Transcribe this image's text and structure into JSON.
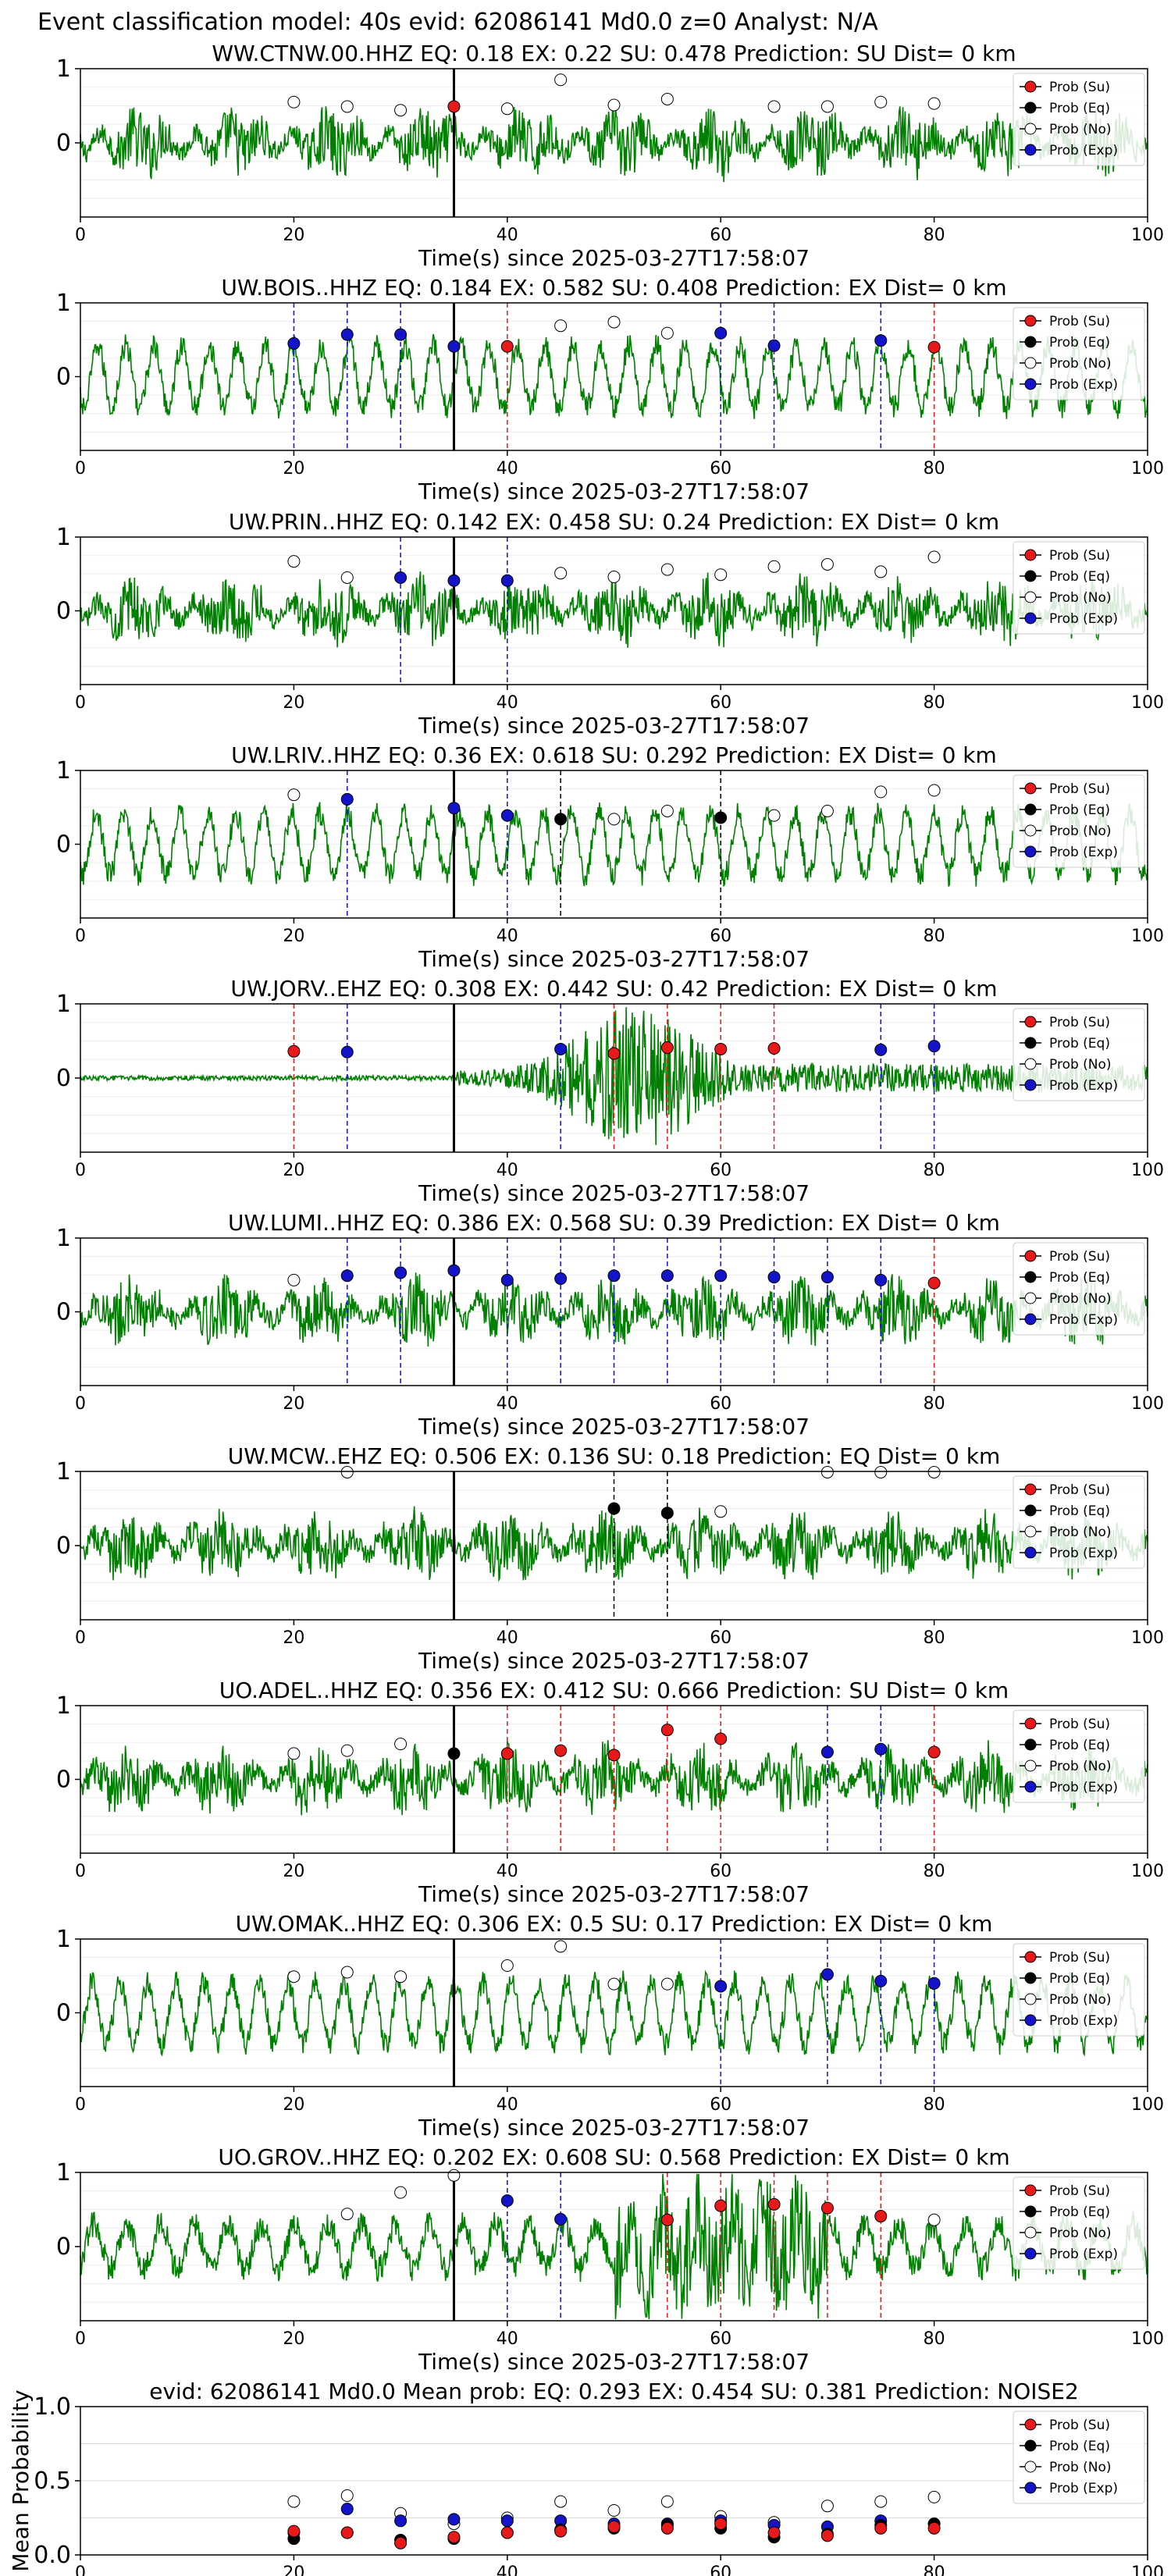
{
  "page": {
    "suptitle": "Event classification model: 40s evid: 62086141 Md0.0 z=0 Analyst: N/A"
  },
  "legend": [
    {
      "label": "Prob (Su)",
      "fill": "#e8191b"
    },
    {
      "label": "Prob (Eq)",
      "fill": "#000000"
    },
    {
      "label": "Prob (No)",
      "fill": "#ffffff"
    },
    {
      "label": "Prob (Exp)",
      "fill": "#1313c8"
    }
  ],
  "colors": {
    "trace": "#008000",
    "su": "#e8191b",
    "eq": "#000000",
    "no": "#ffffff",
    "exp": "#1313c8",
    "origin_line": "#000000"
  },
  "chart_data": [
    {
      "type": "line",
      "title": "WW.CTNW.00.HHZ   EQ: 0.18  EX: 0.22  SU: 0.478   Prediction: SU    Dist= 0 km",
      "xlabel": "Time(s) since 2025-03-27T17:58:07",
      "ylabel": "",
      "xlim": [
        0,
        100
      ],
      "ylim": [
        -1,
        1
      ],
      "yticks": [
        "0",
        "1"
      ],
      "xticks": [
        "0",
        "20",
        "40",
        "60",
        "80",
        "100"
      ],
      "origin_time": 35,
      "waveform": "noisy",
      "points": [
        [
          20,
          0.55,
          "no"
        ],
        [
          25,
          0.49,
          "no"
        ],
        [
          30,
          0.44,
          "no"
        ],
        [
          35,
          0.49,
          "su"
        ],
        [
          40,
          0.46,
          "no"
        ],
        [
          45,
          0.85,
          "no"
        ],
        [
          50,
          0.51,
          "no"
        ],
        [
          55,
          0.59,
          "no"
        ],
        [
          65,
          0.49,
          "no"
        ],
        [
          70,
          0.49,
          "no"
        ],
        [
          75,
          0.55,
          "no"
        ],
        [
          80,
          0.53,
          "no"
        ]
      ],
      "vlines": []
    },
    {
      "type": "line",
      "title": "UW.BOIS..HHZ   EQ: 0.184  EX: 0.582  SU: 0.408   Prediction: EX    Dist= 0 km",
      "xlabel": "Time(s) since 2025-03-27T17:58:07",
      "ylabel": "",
      "xlim": [
        0,
        100
      ],
      "ylim": [
        -1,
        1
      ],
      "yticks": [
        "0",
        "1"
      ],
      "xticks": [
        "0",
        "20",
        "40",
        "60",
        "80",
        "100"
      ],
      "origin_time": 35,
      "waveform": "oscillating",
      "points": [
        [
          20,
          0.45,
          "exp"
        ],
        [
          25,
          0.57,
          "exp"
        ],
        [
          30,
          0.57,
          "exp"
        ],
        [
          35,
          0.41,
          "exp"
        ],
        [
          40,
          0.41,
          "su"
        ],
        [
          45,
          0.69,
          "no"
        ],
        [
          50,
          0.74,
          "no"
        ],
        [
          55,
          0.59,
          "no"
        ],
        [
          60,
          0.59,
          "exp"
        ],
        [
          65,
          0.42,
          "exp"
        ],
        [
          75,
          0.49,
          "exp"
        ],
        [
          80,
          0.4,
          "su"
        ]
      ],
      "vlines": [
        [
          20,
          "exp"
        ],
        [
          25,
          "exp"
        ],
        [
          30,
          "exp"
        ],
        [
          40,
          "su"
        ],
        [
          60,
          "exp"
        ],
        [
          65,
          "exp"
        ],
        [
          75,
          "exp"
        ],
        [
          80,
          "su"
        ]
      ]
    },
    {
      "type": "line",
      "title": "UW.PRIN..HHZ   EQ: 0.142  EX: 0.458  SU: 0.24   Prediction: EX    Dist= 0 km",
      "xlabel": "Time(s) since 2025-03-27T17:58:07",
      "ylabel": "",
      "xlim": [
        0,
        100
      ],
      "ylim": [
        -1,
        1
      ],
      "yticks": [
        "0",
        "1"
      ],
      "xticks": [
        "0",
        "20",
        "40",
        "60",
        "80",
        "100"
      ],
      "origin_time": 35,
      "waveform": "noisy",
      "points": [
        [
          20,
          0.67,
          "no"
        ],
        [
          25,
          0.45,
          "no"
        ],
        [
          30,
          0.45,
          "exp"
        ],
        [
          35,
          0.41,
          "exp"
        ],
        [
          40,
          0.41,
          "exp"
        ],
        [
          45,
          0.51,
          "no"
        ],
        [
          50,
          0.46,
          "no"
        ],
        [
          55,
          0.56,
          "no"
        ],
        [
          60,
          0.49,
          "no"
        ],
        [
          65,
          0.6,
          "no"
        ],
        [
          70,
          0.63,
          "no"
        ],
        [
          75,
          0.53,
          "no"
        ],
        [
          80,
          0.73,
          "no"
        ]
      ],
      "vlines": [
        [
          30,
          "exp"
        ],
        [
          40,
          "exp"
        ]
      ]
    },
    {
      "type": "line",
      "title": "UW.LRIV..HHZ   EQ: 0.36  EX: 0.618  SU: 0.292   Prediction: EX    Dist= 0 km",
      "xlabel": "Time(s) since 2025-03-27T17:58:07",
      "ylabel": "",
      "xlim": [
        0,
        100
      ],
      "ylim": [
        -1,
        1
      ],
      "yticks": [
        "0",
        "1"
      ],
      "xticks": [
        "0",
        "20",
        "40",
        "60",
        "80",
        "100"
      ],
      "origin_time": 35,
      "waveform": "oscillating",
      "points": [
        [
          20,
          0.67,
          "no"
        ],
        [
          25,
          0.61,
          "exp"
        ],
        [
          35,
          0.49,
          "exp"
        ],
        [
          40,
          0.39,
          "exp"
        ],
        [
          45,
          0.34,
          "eq"
        ],
        [
          50,
          0.34,
          "no"
        ],
        [
          55,
          0.45,
          "no"
        ],
        [
          60,
          0.36,
          "eq"
        ],
        [
          65,
          0.39,
          "no"
        ],
        [
          70,
          0.45,
          "no"
        ],
        [
          75,
          0.71,
          "no"
        ],
        [
          80,
          0.73,
          "no"
        ]
      ],
      "vlines": [
        [
          25,
          "exp"
        ],
        [
          40,
          "exp"
        ],
        [
          45,
          "eq"
        ],
        [
          60,
          "eq"
        ]
      ]
    },
    {
      "type": "line",
      "title": "UW.JORV..EHZ   EQ: 0.308  EX: 0.442  SU: 0.42   Prediction: EX    Dist= 0 km",
      "xlabel": "Time(s) since 2025-03-27T17:58:07",
      "ylabel": "",
      "xlim": [
        0,
        100
      ],
      "ylim": [
        -1,
        1
      ],
      "yticks": [
        "0",
        "1"
      ],
      "xticks": [
        "0",
        "20",
        "40",
        "60",
        "80",
        "100"
      ],
      "origin_time": 35,
      "waveform": "burst",
      "points": [
        [
          20,
          0.36,
          "su"
        ],
        [
          25,
          0.35,
          "exp"
        ],
        [
          45,
          0.39,
          "exp"
        ],
        [
          50,
          0.33,
          "su"
        ],
        [
          55,
          0.41,
          "su"
        ],
        [
          60,
          0.39,
          "su"
        ],
        [
          65,
          0.4,
          "su"
        ],
        [
          75,
          0.38,
          "exp"
        ],
        [
          80,
          0.43,
          "exp"
        ]
      ],
      "vlines": [
        [
          20,
          "su"
        ],
        [
          25,
          "exp"
        ],
        [
          45,
          "exp"
        ],
        [
          50,
          "su"
        ],
        [
          55,
          "su"
        ],
        [
          60,
          "su"
        ],
        [
          65,
          "su"
        ],
        [
          75,
          "exp"
        ],
        [
          80,
          "exp"
        ]
      ]
    },
    {
      "type": "line",
      "title": "UW.LUMI..HHZ   EQ: 0.386  EX: 0.568  SU: 0.39   Prediction: EX    Dist= 0 km",
      "xlabel": "Time(s) since 2025-03-27T17:58:07",
      "ylabel": "",
      "xlim": [
        0,
        100
      ],
      "ylim": [
        -1,
        1
      ],
      "yticks": [
        "0",
        "1"
      ],
      "xticks": [
        "0",
        "20",
        "40",
        "60",
        "80",
        "100"
      ],
      "origin_time": 35,
      "waveform": "noisy",
      "points": [
        [
          20,
          0.43,
          "no"
        ],
        [
          25,
          0.49,
          "exp"
        ],
        [
          30,
          0.53,
          "exp"
        ],
        [
          35,
          0.56,
          "exp"
        ],
        [
          40,
          0.43,
          "exp"
        ],
        [
          45,
          0.45,
          "exp"
        ],
        [
          50,
          0.49,
          "exp"
        ],
        [
          55,
          0.49,
          "exp"
        ],
        [
          60,
          0.49,
          "exp"
        ],
        [
          65,
          0.47,
          "exp"
        ],
        [
          70,
          0.47,
          "exp"
        ],
        [
          75,
          0.43,
          "exp"
        ],
        [
          80,
          0.39,
          "su"
        ]
      ],
      "vlines": [
        [
          25,
          "exp"
        ],
        [
          30,
          "exp"
        ],
        [
          35,
          "exp"
        ],
        [
          40,
          "exp"
        ],
        [
          45,
          "exp"
        ],
        [
          50,
          "exp"
        ],
        [
          55,
          "exp"
        ],
        [
          60,
          "exp"
        ],
        [
          65,
          "exp"
        ],
        [
          70,
          "exp"
        ],
        [
          75,
          "exp"
        ],
        [
          80,
          "su"
        ]
      ]
    },
    {
      "type": "line",
      "title": "UW.MCW..EHZ   EQ: 0.506  EX: 0.136  SU: 0.18   Prediction: EQ    Dist= 0 km",
      "xlabel": "Time(s) since 2025-03-27T17:58:07",
      "ylabel": "",
      "xlim": [
        0,
        100
      ],
      "ylim": [
        -1,
        1
      ],
      "yticks": [
        "0",
        "1"
      ],
      "xticks": [
        "0",
        "20",
        "40",
        "60",
        "80",
        "100"
      ],
      "origin_time": 35,
      "waveform": "noisy",
      "points": [
        [
          25,
          0.99,
          "no"
        ],
        [
          50,
          0.5,
          "eq"
        ],
        [
          55,
          0.44,
          "eq"
        ],
        [
          60,
          0.46,
          "no"
        ],
        [
          70,
          0.99,
          "no"
        ],
        [
          75,
          0.99,
          "no"
        ],
        [
          80,
          0.99,
          "no"
        ]
      ],
      "vlines": [
        [
          50,
          "eq"
        ],
        [
          55,
          "eq"
        ]
      ]
    },
    {
      "type": "line",
      "title": "UO.ADEL..HHZ   EQ: 0.356  EX: 0.412  SU: 0.666   Prediction: SU    Dist= 0 km",
      "xlabel": "Time(s) since 2025-03-27T17:58:07",
      "ylabel": "",
      "xlim": [
        0,
        100
      ],
      "ylim": [
        -1,
        1
      ],
      "yticks": [
        "0",
        "1"
      ],
      "xticks": [
        "0",
        "20",
        "40",
        "60",
        "80",
        "100"
      ],
      "origin_time": 35,
      "waveform": "noisy",
      "points": [
        [
          20,
          0.35,
          "no"
        ],
        [
          25,
          0.39,
          "no"
        ],
        [
          30,
          0.48,
          "no"
        ],
        [
          35,
          0.35,
          "eq"
        ],
        [
          40,
          0.35,
          "su"
        ],
        [
          45,
          0.39,
          "su"
        ],
        [
          50,
          0.33,
          "su"
        ],
        [
          55,
          0.67,
          "su"
        ],
        [
          60,
          0.55,
          "su"
        ],
        [
          70,
          0.37,
          "exp"
        ],
        [
          75,
          0.41,
          "exp"
        ],
        [
          80,
          0.37,
          "su"
        ]
      ],
      "vlines": [
        [
          40,
          "su"
        ],
        [
          45,
          "su"
        ],
        [
          50,
          "su"
        ],
        [
          55,
          "su"
        ],
        [
          60,
          "su"
        ],
        [
          70,
          "exp"
        ],
        [
          75,
          "exp"
        ],
        [
          80,
          "su"
        ]
      ]
    },
    {
      "type": "line",
      "title": "UW.OMAK..HHZ   EQ: 0.306  EX: 0.5  SU: 0.17   Prediction: EX    Dist= 0 km",
      "xlabel": "Time(s) since 2025-03-27T17:58:07",
      "ylabel": "",
      "xlim": [
        0,
        100
      ],
      "ylim": [
        -1,
        1
      ],
      "yticks": [
        "0",
        "1"
      ],
      "xticks": [
        "0",
        "20",
        "40",
        "60",
        "80",
        "100"
      ],
      "origin_time": 35,
      "waveform": "oscillating",
      "points": [
        [
          20,
          0.49,
          "no"
        ],
        [
          25,
          0.55,
          "no"
        ],
        [
          30,
          0.49,
          "no"
        ],
        [
          40,
          0.64,
          "no"
        ],
        [
          45,
          0.9,
          "no"
        ],
        [
          50,
          0.39,
          "no"
        ],
        [
          55,
          0.39,
          "no"
        ],
        [
          60,
          0.36,
          "exp"
        ],
        [
          70,
          0.52,
          "exp"
        ],
        [
          75,
          0.43,
          "exp"
        ],
        [
          80,
          0.4,
          "exp"
        ]
      ],
      "vlines": [
        [
          60,
          "exp"
        ],
        [
          70,
          "exp"
        ],
        [
          75,
          "exp"
        ],
        [
          80,
          "exp"
        ]
      ]
    },
    {
      "type": "line",
      "title": "UO.GROV..HHZ   EQ: 0.202  EX: 0.608  SU: 0.568   Prediction: EX    Dist= 0 km",
      "xlabel": "Time(s) since 2025-03-27T17:58:07",
      "ylabel": "",
      "xlim": [
        0,
        100
      ],
      "ylim": [
        -1,
        1
      ],
      "yticks": [
        "0",
        "1"
      ],
      "xticks": [
        "0",
        "20",
        "40",
        "60",
        "80",
        "100"
      ],
      "origin_time": 35,
      "waveform": "burst_osc",
      "points": [
        [
          25,
          0.44,
          "no"
        ],
        [
          30,
          0.73,
          "no"
        ],
        [
          35,
          0.96,
          "no"
        ],
        [
          40,
          0.62,
          "exp"
        ],
        [
          45,
          0.37,
          "exp"
        ],
        [
          55,
          0.36,
          "su"
        ],
        [
          60,
          0.55,
          "su"
        ],
        [
          65,
          0.57,
          "su"
        ],
        [
          70,
          0.52,
          "su"
        ],
        [
          75,
          0.41,
          "su"
        ],
        [
          80,
          0.36,
          "no"
        ]
      ],
      "vlines": [
        [
          40,
          "exp"
        ],
        [
          45,
          "exp"
        ],
        [
          55,
          "su"
        ],
        [
          60,
          "su"
        ],
        [
          65,
          "su"
        ],
        [
          70,
          "su"
        ],
        [
          75,
          "su"
        ]
      ]
    },
    {
      "type": "scatter",
      "title": "evid: 62086141   Md0.0   Mean prob:   EQ: 0.293   EX: 0.454   SU: 0.381   Prediction: NOISE2",
      "xlabel": "",
      "ylabel": "Mean Probability",
      "xlim": [
        0,
        100
      ],
      "ylim": [
        0,
        1
      ],
      "yticks": [
        "0.0",
        "0.5",
        "1.0"
      ],
      "xticks": [
        "0",
        "20",
        "40",
        "60",
        "80",
        "100"
      ],
      "grid": true,
      "series": [
        {
          "name": "Prob (No)",
          "key": "no",
          "x": [
            20,
            25,
            30,
            35,
            40,
            45,
            50,
            55,
            60,
            65,
            70,
            75,
            80
          ],
          "y": [
            0.36,
            0.4,
            0.28,
            0.21,
            0.25,
            0.36,
            0.3,
            0.36,
            0.26,
            0.22,
            0.33,
            0.36,
            0.39
          ]
        },
        {
          "name": "Prob (Exp)",
          "key": "exp",
          "x": [
            20,
            25,
            30,
            35,
            40,
            45,
            50,
            55,
            60,
            65,
            70,
            75,
            80
          ],
          "y": [
            0.15,
            0.31,
            0.23,
            0.24,
            0.23,
            0.23,
            0.21,
            0.21,
            0.23,
            0.2,
            0.19,
            0.23,
            0.21
          ]
        },
        {
          "name": "Prob (Eq)",
          "key": "eq",
          "x": [
            20,
            25,
            30,
            35,
            40,
            45,
            50,
            55,
            60,
            65,
            70,
            75,
            80
          ],
          "y": [
            0.11,
            0.15,
            0.1,
            0.11,
            0.15,
            0.17,
            0.18,
            0.2,
            0.18,
            0.12,
            0.14,
            0.2,
            0.21
          ]
        },
        {
          "name": "Prob (Su)",
          "key": "su",
          "x": [
            20,
            25,
            30,
            35,
            40,
            45,
            50,
            55,
            60,
            65,
            70,
            75,
            80
          ],
          "y": [
            0.16,
            0.15,
            0.08,
            0.12,
            0.15,
            0.16,
            0.19,
            0.18,
            0.21,
            0.15,
            0.13,
            0.18,
            0.18
          ]
        }
      ]
    }
  ]
}
